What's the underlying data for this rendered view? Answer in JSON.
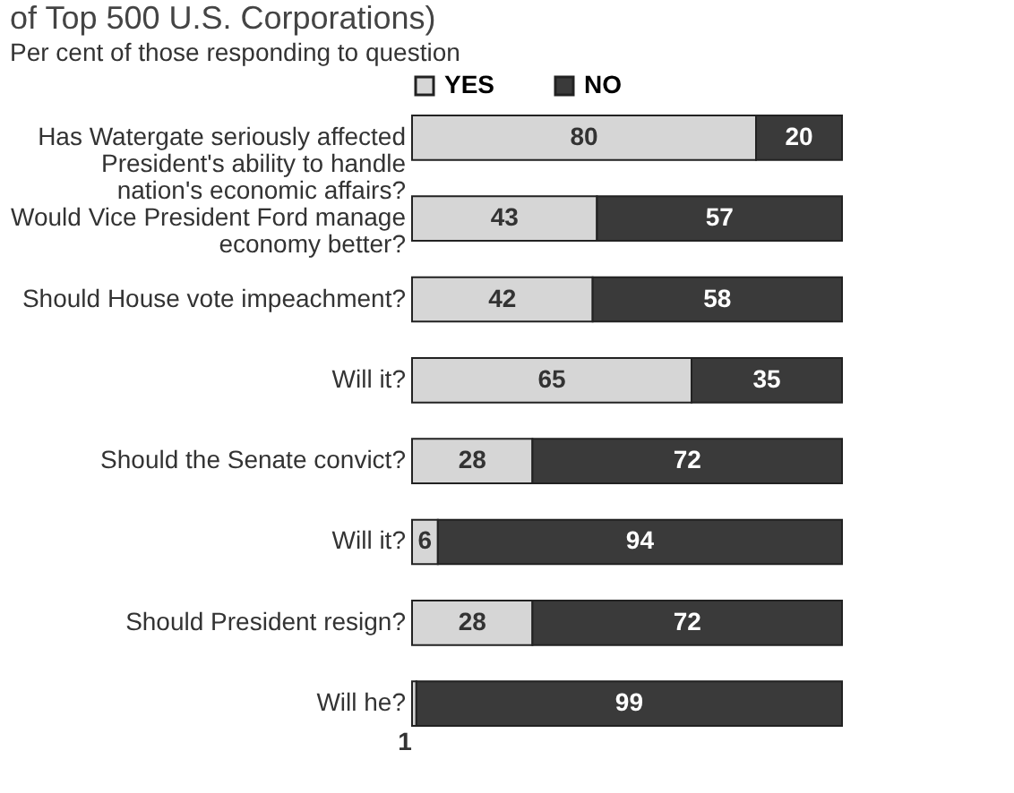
{
  "chart_data": {
    "type": "bar",
    "orientation": "horizontal",
    "stacked": true,
    "data_labels": true,
    "legend": "top",
    "title": "of Top 500 U.S. Corporations)",
    "subtitle": "Per cent of those responding to question",
    "categories": [
      "Has Watergate seriously affected President's ability to handle nation's economic affairs?",
      "Would Vice President Ford manage economy better?",
      "Should House vote impeachment?",
      "Will it?",
      "Should the Senate convict?",
      "Will it?",
      "Should President resign?",
      "Will he?"
    ],
    "series": [
      {
        "name": "YES",
        "color": "#d6d6d6",
        "values": [
          80,
          43,
          42,
          65,
          28,
          6,
          28,
          1
        ]
      },
      {
        "name": "NO",
        "color": "#3a3a3a",
        "values": [
          20,
          57,
          58,
          35,
          72,
          94,
          72,
          99
        ]
      }
    ]
  }
}
